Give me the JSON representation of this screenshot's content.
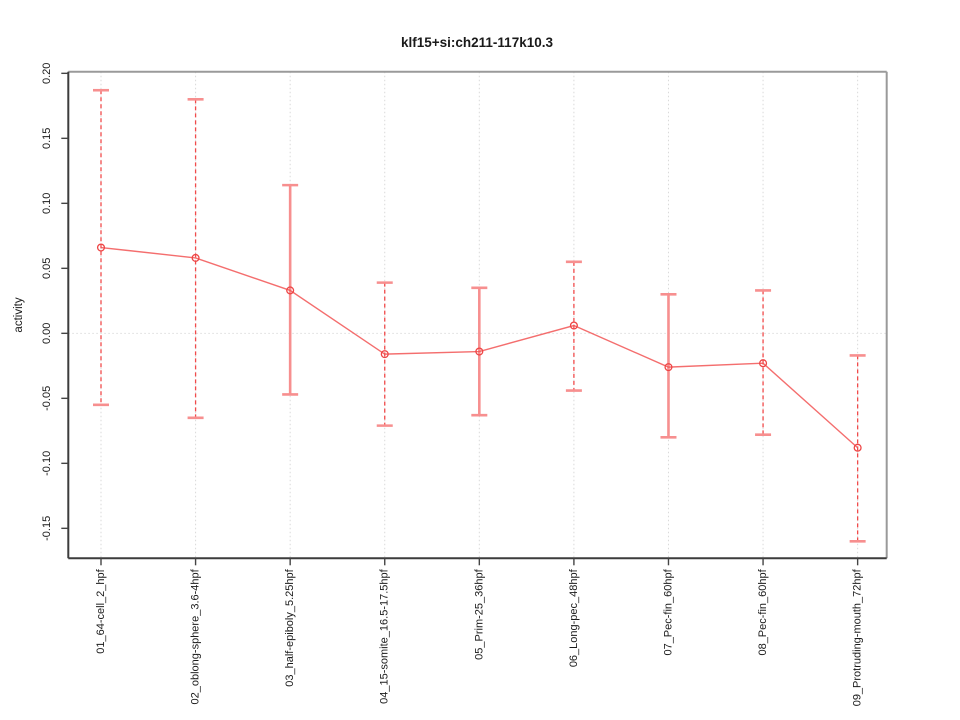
{
  "window": {
    "background": "#ffffff"
  },
  "chart_data": {
    "type": "line",
    "title": "klf15+si:ch211-117k10.3",
    "xlabel": "",
    "ylabel": "activity",
    "ylim": [
      -0.173,
      0.201
    ],
    "yticks": [
      0.2,
      0.15,
      0.1,
      0.05,
      0.0,
      -0.05,
      -0.1,
      -0.15
    ],
    "ytick_labels": [
      "0.20",
      "0.15",
      "0.10",
      "0.05",
      "0.00",
      "-0.05",
      "-0.10",
      "-0.15"
    ],
    "grid": {
      "vertical_dotted_per_category": true,
      "horizontal_dotted_at_zero": true
    },
    "legend": "none",
    "categories": [
      "01_64-cell_2_hpf",
      "02_oblong-sphere_3.6-4hpf",
      "03_half-epiboly_5.25hpf",
      "04_15-somite_16.5-17.5hpf",
      "05_Prim-25_36hpf",
      "06_Long-pec_48hpf",
      "07_Pec-fin_60hpf",
      "08_Pec-fin_60hpf",
      "09_Protruding-mouth_72hpf"
    ],
    "series": [
      {
        "name": "activity",
        "marker": "open-circle",
        "values": [
          0.066,
          0.058,
          0.033,
          -0.016,
          -0.014,
          0.006,
          -0.026,
          -0.023,
          -0.088
        ],
        "error_lower": [
          -0.055,
          -0.065,
          -0.047,
          -0.071,
          -0.063,
          -0.044,
          -0.08,
          -0.078,
          -0.16
        ],
        "error_upper": [
          0.187,
          0.18,
          0.114,
          0.039,
          0.035,
          0.055,
          0.03,
          0.033,
          -0.017
        ],
        "error_bar_styles": [
          "dashed",
          "dashed",
          "solid",
          "dashed",
          "solid",
          "dashed",
          "solid",
          "dashed",
          "dashed"
        ]
      }
    ],
    "colors": {
      "series_line": "#f25555",
      "marker_stroke": "#ee4545",
      "error_dashed": "#f14b4b",
      "error_solid": "#f78f8f",
      "error_cap": "#f78f8f",
      "gridline": "#d9d9d9",
      "zero_line": "#dcdcdc",
      "axis_dark": "#3c3c3c",
      "axis_light": "#9a9a9a",
      "tick": "#444444",
      "text": "#1a1a1a"
    }
  }
}
